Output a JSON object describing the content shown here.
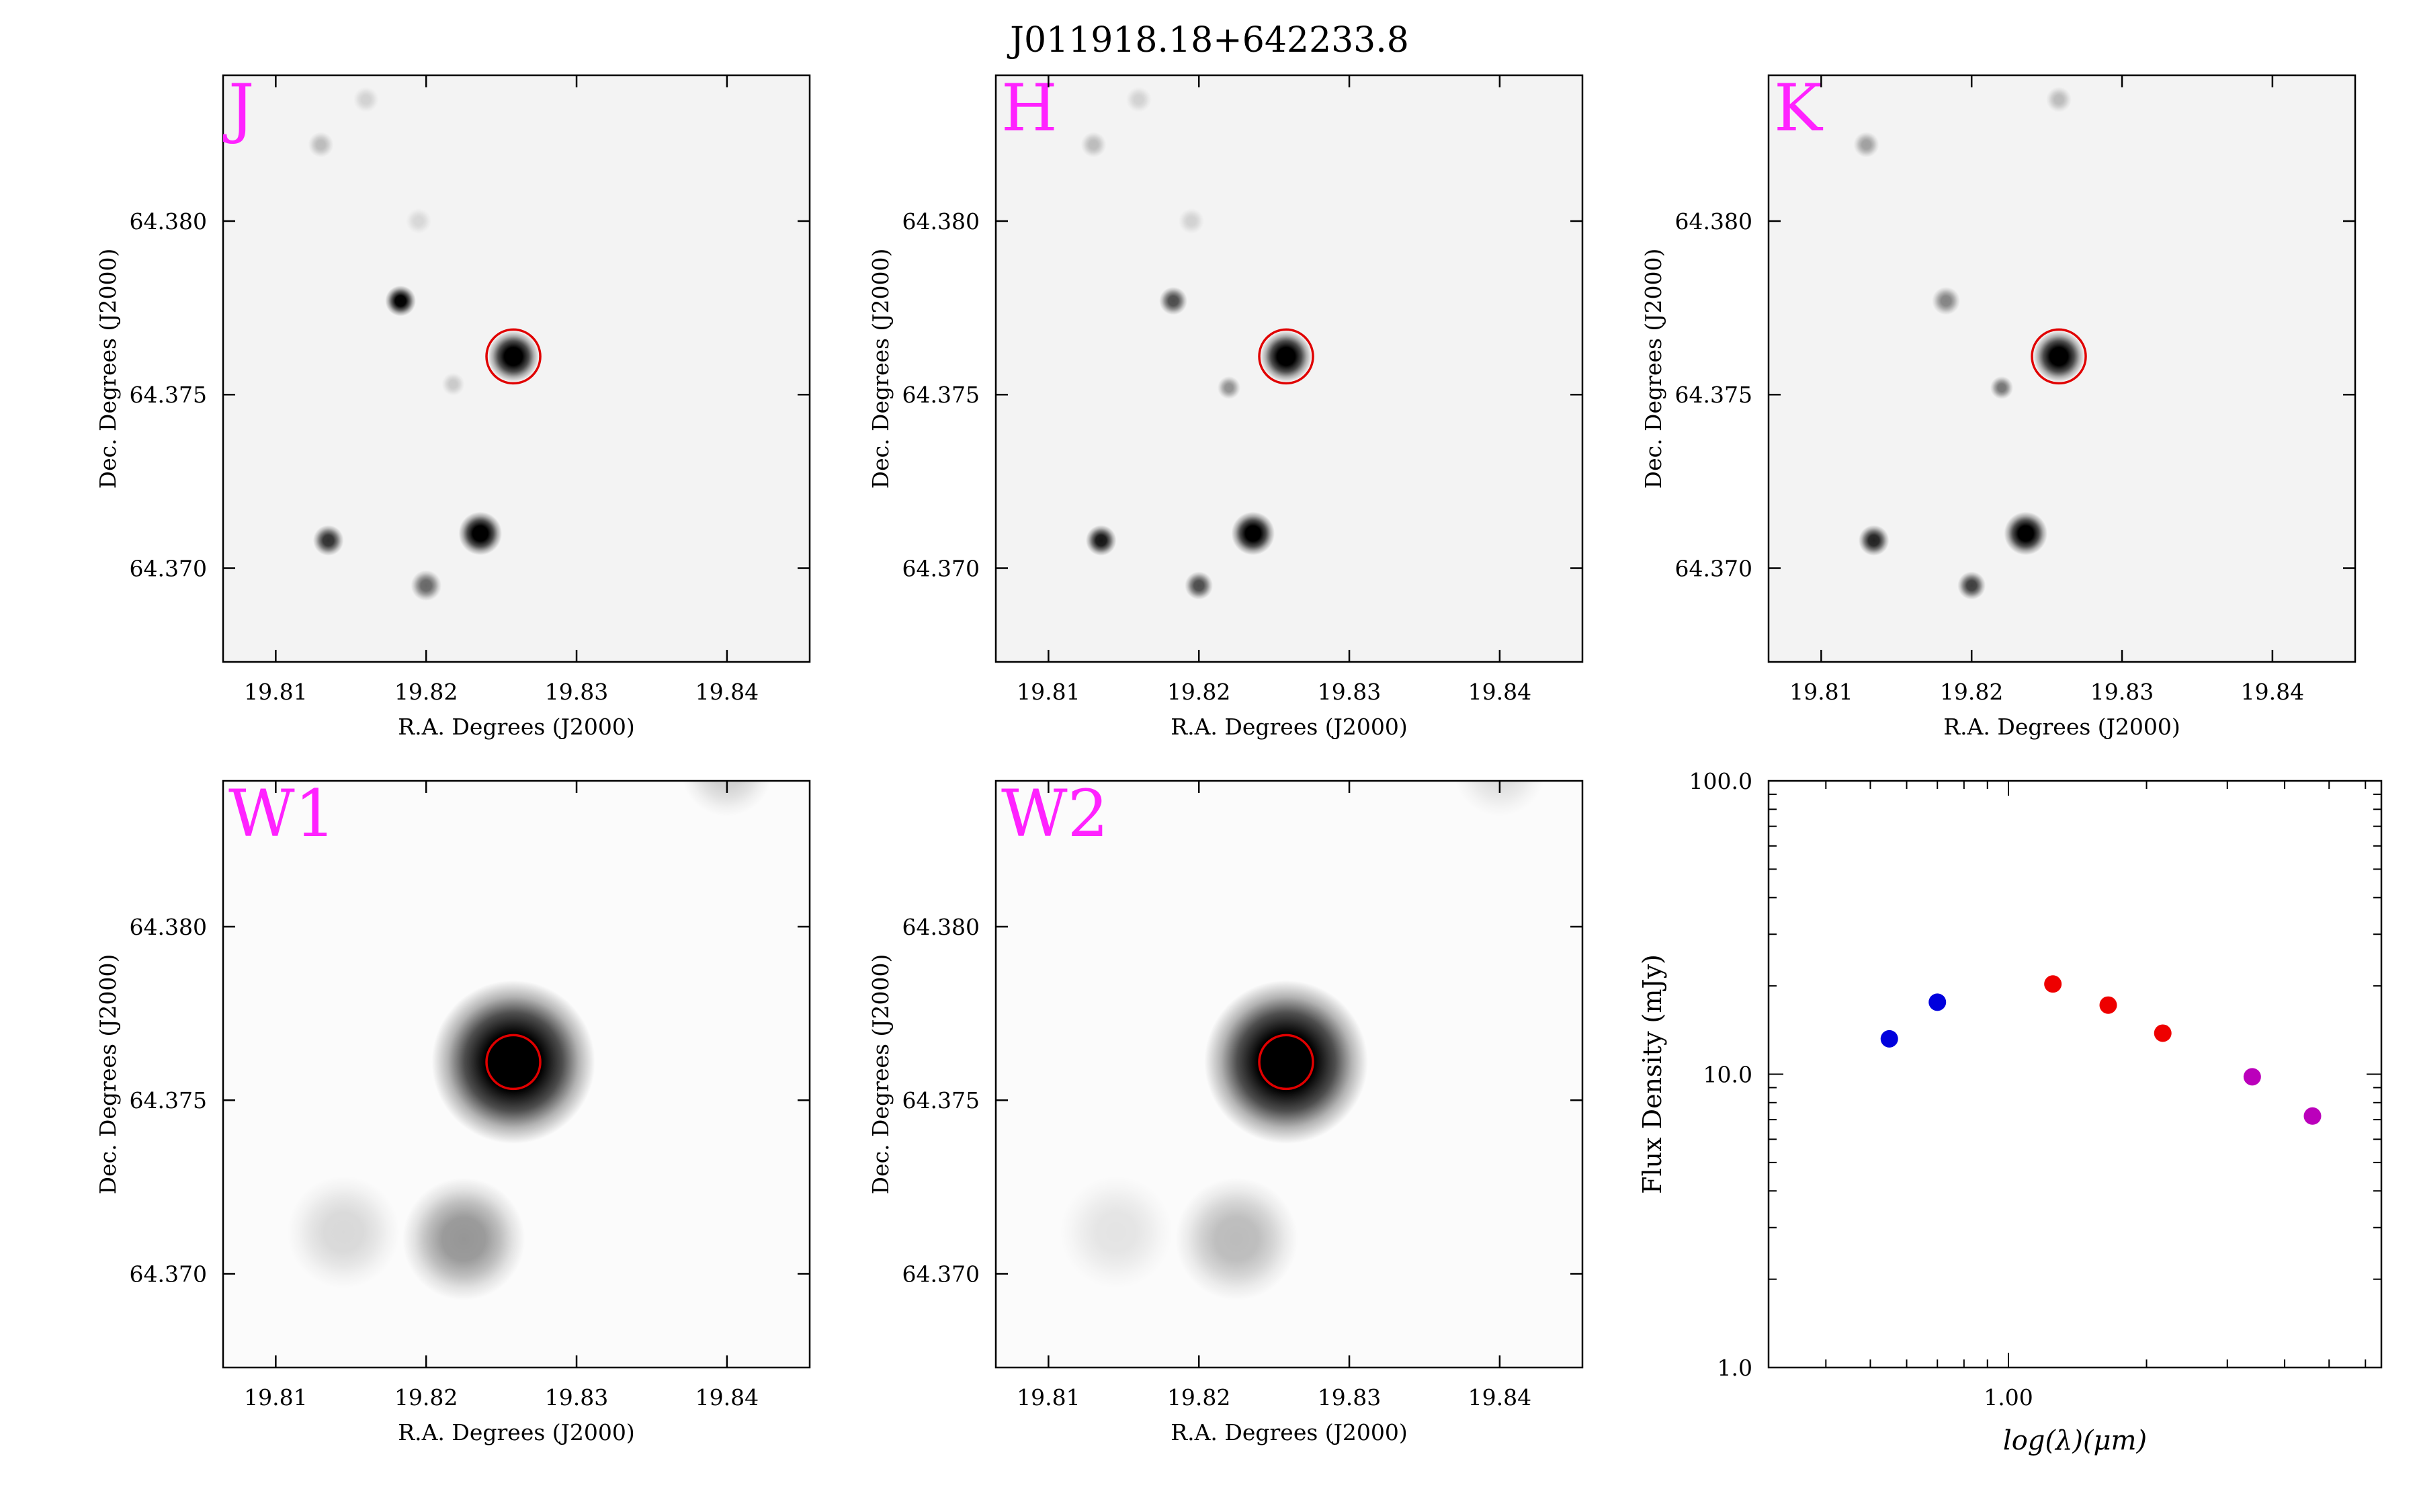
{
  "title": "J011918.18+642233.8",
  "colors": {
    "band_label": "#ff22ff",
    "aperture": "#e00000",
    "frame": "#000000",
    "sed_blue": "#0000dd",
    "sed_red": "#ee0000",
    "sed_magenta": "#bb00bb"
  },
  "chart_data": [
    {
      "type": "image",
      "band": "J",
      "xlabel": "R.A. Degrees (J2000)",
      "ylabel": "Dec. Degrees (J2000)",
      "xlim": [
        19.8065,
        19.8455
      ],
      "ylim": [
        64.3673,
        64.3842
      ],
      "xticks": [
        "19.81",
        "19.82",
        "19.83",
        "19.84"
      ],
      "yticks": [
        "64.370",
        "64.375",
        "64.380"
      ],
      "aperture": {
        "ra": 19.8258,
        "dec": 64.3761
      },
      "sources": [
        {
          "ra": 19.8258,
          "dec": 64.3761,
          "level": 1.0,
          "size": 1.0
        },
        {
          "ra": 19.8236,
          "dec": 64.371,
          "level": 1.0,
          "size": 0.85
        },
        {
          "ra": 19.8183,
          "dec": 64.3777,
          "level": 0.9,
          "size": 0.6
        },
        {
          "ra": 19.8135,
          "dec": 64.3708,
          "level": 0.7,
          "size": 0.6
        },
        {
          "ra": 19.82,
          "dec": 64.3695,
          "level": 0.5,
          "size": 0.6
        },
        {
          "ra": 19.813,
          "dec": 64.3822,
          "level": 0.2,
          "size": 0.5
        },
        {
          "ra": 19.816,
          "dec": 64.3835,
          "level": 0.12,
          "size": 0.5
        },
        {
          "ra": 19.8195,
          "dec": 64.38,
          "level": 0.1,
          "size": 0.5
        },
        {
          "ra": 19.8218,
          "dec": 64.3753,
          "level": 0.15,
          "size": 0.45
        }
      ]
    },
    {
      "type": "image",
      "band": "H",
      "xlabel": "R.A. Degrees (J2000)",
      "ylabel": "Dec. Degrees (J2000)",
      "xlim": [
        19.8065,
        19.8455
      ],
      "ylim": [
        64.3673,
        64.3842
      ],
      "xticks": [
        "19.81",
        "19.82",
        "19.83",
        "19.84"
      ],
      "yticks": [
        "64.370",
        "64.375",
        "64.380"
      ],
      "aperture": {
        "ra": 19.8258,
        "dec": 64.3761
      },
      "sources": [
        {
          "ra": 19.8258,
          "dec": 64.3761,
          "level": 1.0,
          "size": 1.0
        },
        {
          "ra": 19.8236,
          "dec": 64.371,
          "level": 1.0,
          "size": 0.85
        },
        {
          "ra": 19.8183,
          "dec": 64.3777,
          "level": 0.6,
          "size": 0.55
        },
        {
          "ra": 19.8135,
          "dec": 64.3708,
          "level": 0.8,
          "size": 0.6
        },
        {
          "ra": 19.82,
          "dec": 64.3695,
          "level": 0.6,
          "size": 0.55
        },
        {
          "ra": 19.813,
          "dec": 64.3822,
          "level": 0.2,
          "size": 0.5
        },
        {
          "ra": 19.816,
          "dec": 64.3835,
          "level": 0.12,
          "size": 0.5
        },
        {
          "ra": 19.8195,
          "dec": 64.38,
          "level": 0.12,
          "size": 0.5
        },
        {
          "ra": 19.822,
          "dec": 64.3752,
          "level": 0.35,
          "size": 0.45
        }
      ]
    },
    {
      "type": "image",
      "band": "K",
      "xlabel": "R.A. Degrees (J2000)",
      "ylabel": "Dec. Degrees (J2000)",
      "xlim": [
        19.8065,
        19.8455
      ],
      "ylim": [
        64.3673,
        64.3842
      ],
      "xticks": [
        "19.81",
        "19.82",
        "19.83",
        "19.84"
      ],
      "yticks": [
        "64.370",
        "64.375",
        "64.380"
      ],
      "aperture": {
        "ra": 19.8258,
        "dec": 64.3761
      },
      "sources": [
        {
          "ra": 19.8258,
          "dec": 64.3761,
          "level": 1.0,
          "size": 1.0
        },
        {
          "ra": 19.8236,
          "dec": 64.371,
          "level": 1.0,
          "size": 0.85
        },
        {
          "ra": 19.8183,
          "dec": 64.3777,
          "level": 0.4,
          "size": 0.55
        },
        {
          "ra": 19.8135,
          "dec": 64.3708,
          "level": 0.75,
          "size": 0.6
        },
        {
          "ra": 19.82,
          "dec": 64.3695,
          "level": 0.65,
          "size": 0.55
        },
        {
          "ra": 19.813,
          "dec": 64.3822,
          "level": 0.3,
          "size": 0.5
        },
        {
          "ra": 19.8258,
          "dec": 64.3835,
          "level": 0.2,
          "size": 0.5
        },
        {
          "ra": 19.822,
          "dec": 64.3752,
          "level": 0.45,
          "size": 0.45
        }
      ]
    },
    {
      "type": "image",
      "band": "W1",
      "xlabel": "R.A. Degrees (J2000)",
      "ylabel": "Dec. Degrees (J2000)",
      "xlim": [
        19.8065,
        19.8455
      ],
      "ylim": [
        64.3673,
        64.3842
      ],
      "xticks": [
        "19.81",
        "19.82",
        "19.83",
        "19.84"
      ],
      "yticks": [
        "64.370",
        "64.375",
        "64.380"
      ],
      "aperture": {
        "ra": 19.8258,
        "dec": 64.3761
      },
      "sources": [
        {
          "ra": 19.8258,
          "dec": 64.3761,
          "level": 1.0,
          "size": 3.2
        },
        {
          "ra": 19.8225,
          "dec": 64.371,
          "level": 0.35,
          "size": 2.4
        },
        {
          "ra": 19.8145,
          "dec": 64.3712,
          "level": 0.12,
          "size": 2.2
        },
        {
          "ra": 19.84,
          "dec": 64.3845,
          "level": 0.15,
          "size": 1.8
        }
      ]
    },
    {
      "type": "image",
      "band": "W2",
      "xlabel": "R.A. Degrees (J2000)",
      "ylabel": "Dec. Degrees (J2000)",
      "xlim": [
        19.8065,
        19.8455
      ],
      "ylim": [
        64.3673,
        64.3842
      ],
      "xticks": [
        "19.81",
        "19.82",
        "19.83",
        "19.84"
      ],
      "yticks": [
        "64.370",
        "64.375",
        "64.380"
      ],
      "aperture": {
        "ra": 19.8258,
        "dec": 64.3761
      },
      "sources": [
        {
          "ra": 19.8258,
          "dec": 64.3761,
          "level": 1.0,
          "size": 3.2
        },
        {
          "ra": 19.8225,
          "dec": 64.371,
          "level": 0.22,
          "size": 2.4
        },
        {
          "ra": 19.8145,
          "dec": 64.3712,
          "level": 0.08,
          "size": 2.2
        },
        {
          "ra": 19.84,
          "dec": 64.3845,
          "level": 0.1,
          "size": 1.8
        }
      ]
    },
    {
      "type": "scatter",
      "xlabel": "log(λ)(μm)",
      "ylabel": "Flux Density (mJy)",
      "xscale": "log",
      "yscale": "log",
      "xlim": [
        0.3,
        6.5
      ],
      "ylim": [
        1.0,
        100.0
      ],
      "xticks": [
        "1.00"
      ],
      "yticks": [
        "1.0",
        "10.0",
        "100.0"
      ],
      "series": [
        {
          "color": "#0000dd",
          "x": [
            0.55,
            0.7
          ],
          "y": [
            13.2,
            17.6
          ]
        },
        {
          "color": "#ee0000",
          "x": [
            1.25,
            1.65,
            2.17
          ],
          "y": [
            20.3,
            17.2,
            13.8
          ]
        },
        {
          "color": "#bb00bb",
          "x": [
            3.4,
            4.6
          ],
          "y": [
            9.8,
            7.2
          ]
        }
      ]
    }
  ]
}
